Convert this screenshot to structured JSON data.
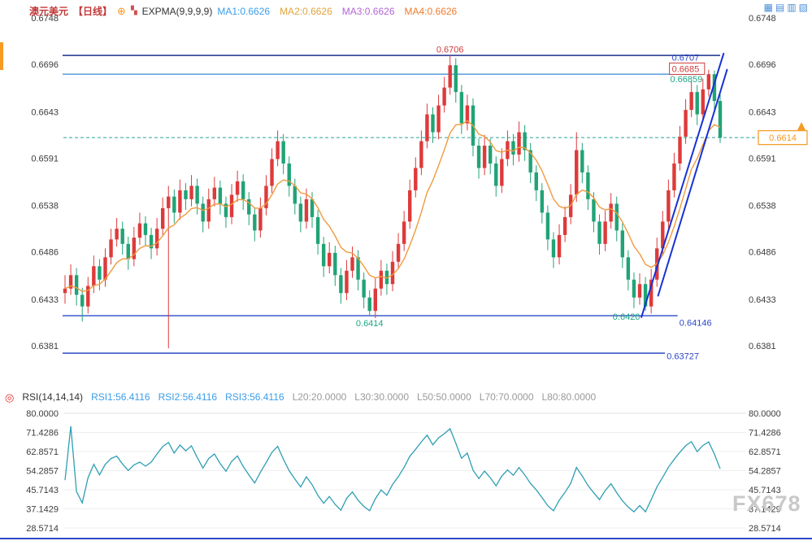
{
  "header": {
    "symbol": "澳元美元",
    "period": "【日线】",
    "indicator": "EXPMA(9,9,9,9)"
  },
  "icons": {
    "add_indicator": "⊕",
    "kline": "▚",
    "rsi_target": "◎"
  },
  "toolbar_icons": [
    {
      "name": "layout-single-icon",
      "glyph": "▦"
    },
    {
      "name": "layout-split-icon",
      "glyph": "▤"
    },
    {
      "name": "layout-columns-icon",
      "glyph": "▥"
    },
    {
      "name": "layout-grid-icon",
      "glyph": "▧"
    }
  ],
  "watermark": "FX678",
  "chart_data": [
    {
      "type": "candlestick",
      "title": "澳元美元 日线 EXPMA(9,9,9,9)",
      "y_ticks": [
        "0.6748",
        "0.6696",
        "0.6643",
        "0.6591",
        "0.6538",
        "0.6486",
        "0.6433",
        "0.6381"
      ],
      "ylim": [
        0.6381,
        0.6748
      ],
      "up_color": "#de3a3a",
      "down_color": "#21a376",
      "ema_period": 9,
      "ema_color": "#f09a3e",
      "ma_items": [
        {
          "label": "MA1:0.6626",
          "color": "#3b9de8"
        },
        {
          "label": "MA2:0.6626",
          "color": "#e2a33c"
        },
        {
          "label": "MA3:0.6626",
          "color": "#b565d8"
        },
        {
          "label": "MA4:0.6626",
          "color": "#ef7d2e"
        }
      ],
      "hlines": [
        {
          "price": 0.6706,
          "end_index": 114,
          "color": "#1b2f8c",
          "width": 1.6
        },
        {
          "price": 0.6685,
          "end_index": 110.6,
          "color": "#4a93d9",
          "width": 1.4
        },
        {
          "price": 0.64146,
          "end_index": 106.6,
          "color": "#2d49c8",
          "width": 1.4
        },
        {
          "price": 0.63727,
          "end_index": 104.4,
          "color": "#2d49c8",
          "width": 1.4
        }
      ],
      "dashed_line": {
        "price": 0.6614,
        "color": "#2aa198"
      },
      "price_marker": {
        "text": "0.6614",
        "price": 0.6614,
        "color": "#f59a23"
      },
      "trendlines": [
        {
          "from": {
            "i": 100.3,
            "p": 0.6413
          },
          "to": {
            "i": 114.6,
            "p": 0.6708
          },
          "color": "#1732d2",
          "width": 2
        },
        {
          "from": {
            "i": 103.2,
            "p": 0.6437
          },
          "to": {
            "i": 115.2,
            "p": 0.669
          },
          "color": "#1732d2",
          "width": 2
        }
      ],
      "annotations": [
        {
          "text": "0.6706",
          "i": 67,
          "p": 0.67095,
          "color": "#d03b3b",
          "anchor": "middle",
          "boxed": false
        },
        {
          "text": "0.6414",
          "i": 53,
          "p": 0.6403,
          "color": "#1ba784",
          "anchor": "middle",
          "boxed": false
        },
        {
          "text": "0.6420",
          "i": 95.3,
          "p": 0.641,
          "color": "#1ba784",
          "anchor": "start",
          "boxed": false
        },
        {
          "text": "0.64146",
          "i": 106.9,
          "p": 0.64035,
          "color": "#2d49c8",
          "anchor": "start",
          "boxed": false
        },
        {
          "text": "0.63727",
          "i": 104.7,
          "p": 0.6366,
          "color": "#2d49c8",
          "anchor": "start",
          "boxed": false
        },
        {
          "text": "0.6707",
          "i": 105.6,
          "p": 0.67,
          "color": "#2d49c8",
          "anchor": "start",
          "boxed": false
        },
        {
          "text": "0.6685",
          "i": 105.6,
          "p": 0.66875,
          "color": "#d03b3b",
          "anchor": "start",
          "boxed": true
        },
        {
          "text": "0.66859",
          "i": 105.3,
          "p": 0.6676,
          "color": "#1ba784",
          "anchor": "start",
          "boxed": false
        }
      ],
      "candles": [
        [
          0.644,
          0.646,
          0.6428,
          0.6445
        ],
        [
          0.6445,
          0.6472,
          0.6438,
          0.646
        ],
        [
          0.646,
          0.6468,
          0.6426,
          0.6438
        ],
        [
          0.6438,
          0.6446,
          0.6408,
          0.6425
        ],
        [
          0.6425,
          0.6458,
          0.6417,
          0.6448
        ],
        [
          0.6448,
          0.6482,
          0.644,
          0.647
        ],
        [
          0.647,
          0.6478,
          0.6443,
          0.6455
        ],
        [
          0.6455,
          0.649,
          0.6447,
          0.648
        ],
        [
          0.648,
          0.6512,
          0.6472,
          0.65
        ],
        [
          0.65,
          0.6524,
          0.6492,
          0.6512
        ],
        [
          0.6512,
          0.652,
          0.6483,
          0.6495
        ],
        [
          0.6495,
          0.6503,
          0.6466,
          0.6478
        ],
        [
          0.6478,
          0.6514,
          0.647,
          0.6502
        ],
        [
          0.6502,
          0.653,
          0.6494,
          0.6518
        ],
        [
          0.6518,
          0.6526,
          0.6493,
          0.6505
        ],
        [
          0.6505,
          0.6513,
          0.6478,
          0.649
        ],
        [
          0.649,
          0.6524,
          0.6482,
          0.6512
        ],
        [
          0.6512,
          0.6547,
          0.6504,
          0.6535
        ],
        [
          0.6535,
          0.656,
          0.6378,
          0.6548
        ],
        [
          0.6548,
          0.6556,
          0.6518,
          0.653
        ],
        [
          0.653,
          0.6567,
          0.6522,
          0.6555
        ],
        [
          0.6555,
          0.6563,
          0.6533,
          0.6545
        ],
        [
          0.6545,
          0.6572,
          0.6537,
          0.656
        ],
        [
          0.656,
          0.6568,
          0.6528,
          0.654
        ],
        [
          0.654,
          0.6548,
          0.6508,
          0.652
        ],
        [
          0.652,
          0.6557,
          0.6512,
          0.6545
        ],
        [
          0.6545,
          0.657,
          0.6537,
          0.6558
        ],
        [
          0.6558,
          0.6566,
          0.6528,
          0.654
        ],
        [
          0.654,
          0.6548,
          0.6513,
          0.6525
        ],
        [
          0.6525,
          0.6562,
          0.6517,
          0.655
        ],
        [
          0.655,
          0.6577,
          0.6542,
          0.6565
        ],
        [
          0.6565,
          0.6573,
          0.6533,
          0.6545
        ],
        [
          0.6545,
          0.6553,
          0.6516,
          0.6528
        ],
        [
          0.6528,
          0.6536,
          0.6498,
          0.651
        ],
        [
          0.651,
          0.6547,
          0.6502,
          0.6535
        ],
        [
          0.6535,
          0.6572,
          0.6527,
          0.656
        ],
        [
          0.656,
          0.6602,
          0.6552,
          0.659
        ],
        [
          0.659,
          0.6622,
          0.6582,
          0.661
        ],
        [
          0.661,
          0.6618,
          0.6573,
          0.6585
        ],
        [
          0.6585,
          0.6593,
          0.6548,
          0.656
        ],
        [
          0.656,
          0.6568,
          0.6528,
          0.654
        ],
        [
          0.654,
          0.6548,
          0.6508,
          0.652
        ],
        [
          0.652,
          0.6557,
          0.6512,
          0.6545
        ],
        [
          0.6545,
          0.6553,
          0.6513,
          0.6525
        ],
        [
          0.6525,
          0.6533,
          0.6483,
          0.6495
        ],
        [
          0.6495,
          0.6503,
          0.6458,
          0.647
        ],
        [
          0.647,
          0.6497,
          0.6462,
          0.6485
        ],
        [
          0.6485,
          0.6493,
          0.6448,
          0.646
        ],
        [
          0.646,
          0.6468,
          0.6428,
          0.644
        ],
        [
          0.644,
          0.6477,
          0.6432,
          0.6465
        ],
        [
          0.6465,
          0.6492,
          0.6457,
          0.648
        ],
        [
          0.648,
          0.6488,
          0.6443,
          0.6455
        ],
        [
          0.6455,
          0.6463,
          0.6423,
          0.6435
        ],
        [
          0.6435,
          0.6443,
          0.6414,
          0.642
        ],
        [
          0.642,
          0.6457,
          0.6412,
          0.6445
        ],
        [
          0.6445,
          0.6477,
          0.6437,
          0.6465
        ],
        [
          0.6465,
          0.6473,
          0.6438,
          0.645
        ],
        [
          0.645,
          0.6487,
          0.6442,
          0.6475
        ],
        [
          0.6475,
          0.6507,
          0.6467,
          0.6495
        ],
        [
          0.6495,
          0.6532,
          0.6487,
          0.652
        ],
        [
          0.652,
          0.6567,
          0.6512,
          0.6555
        ],
        [
          0.6555,
          0.6592,
          0.6547,
          0.658
        ],
        [
          0.658,
          0.6622,
          0.6572,
          0.661
        ],
        [
          0.661,
          0.6652,
          0.6602,
          0.664
        ],
        [
          0.664,
          0.6648,
          0.6608,
          0.662
        ],
        [
          0.662,
          0.6662,
          0.6612,
          0.665
        ],
        [
          0.665,
          0.6682,
          0.6642,
          0.667
        ],
        [
          0.667,
          0.6706,
          0.6662,
          0.6695
        ],
        [
          0.6695,
          0.6703,
          0.6653,
          0.6665
        ],
        [
          0.6665,
          0.6673,
          0.6618,
          0.663
        ],
        [
          0.663,
          0.6662,
          0.6622,
          0.665
        ],
        [
          0.665,
          0.6658,
          0.6593,
          0.6605
        ],
        [
          0.6605,
          0.6613,
          0.6568,
          0.658
        ],
        [
          0.658,
          0.6617,
          0.6572,
          0.6605
        ],
        [
          0.6605,
          0.6613,
          0.6573,
          0.6585
        ],
        [
          0.6585,
          0.6593,
          0.6548,
          0.656
        ],
        [
          0.656,
          0.6602,
          0.6552,
          0.659
        ],
        [
          0.659,
          0.6622,
          0.6582,
          0.661
        ],
        [
          0.661,
          0.6618,
          0.6583,
          0.6595
        ],
        [
          0.6595,
          0.6632,
          0.6587,
          0.662
        ],
        [
          0.662,
          0.6628,
          0.6588,
          0.66
        ],
        [
          0.66,
          0.6608,
          0.6563,
          0.6575
        ],
        [
          0.6575,
          0.6583,
          0.6543,
          0.6555
        ],
        [
          0.6555,
          0.6563,
          0.6518,
          0.653
        ],
        [
          0.653,
          0.6538,
          0.6488,
          0.65
        ],
        [
          0.65,
          0.6508,
          0.6468,
          0.648
        ],
        [
          0.648,
          0.6517,
          0.6472,
          0.6505
        ],
        [
          0.6505,
          0.6537,
          0.6497,
          0.6525
        ],
        [
          0.6525,
          0.6562,
          0.6517,
          0.655
        ],
        [
          0.655,
          0.662,
          0.6542,
          0.66
        ],
        [
          0.66,
          0.6608,
          0.6563,
          0.6575
        ],
        [
          0.6575,
          0.6583,
          0.6533,
          0.6545
        ],
        [
          0.6545,
          0.6553,
          0.6508,
          0.652
        ],
        [
          0.652,
          0.6528,
          0.6483,
          0.6495
        ],
        [
          0.6495,
          0.6532,
          0.6487,
          0.652
        ],
        [
          0.652,
          0.6552,
          0.6512,
          0.654
        ],
        [
          0.654,
          0.6548,
          0.6498,
          0.651
        ],
        [
          0.651,
          0.6518,
          0.6468,
          0.648
        ],
        [
          0.648,
          0.6488,
          0.6443,
          0.6455
        ],
        [
          0.6455,
          0.6463,
          0.6423,
          0.6435
        ],
        [
          0.6435,
          0.6462,
          0.6427,
          0.645
        ],
        [
          0.645,
          0.6458,
          0.642,
          0.6425
        ],
        [
          0.6425,
          0.6467,
          0.6417,
          0.6455
        ],
        [
          0.6455,
          0.6502,
          0.6447,
          0.649
        ],
        [
          0.649,
          0.6532,
          0.6482,
          0.652
        ],
        [
          0.652,
          0.6567,
          0.6512,
          0.6555
        ],
        [
          0.6555,
          0.6597,
          0.6547,
          0.6585
        ],
        [
          0.6585,
          0.6627,
          0.6577,
          0.6615
        ],
        [
          0.6615,
          0.6657,
          0.6607,
          0.6645
        ],
        [
          0.6645,
          0.6677,
          0.6637,
          0.6665
        ],
        [
          0.6665,
          0.6673,
          0.6628,
          0.664
        ],
        [
          0.664,
          0.668,
          0.6632,
          0.6668
        ],
        [
          0.6668,
          0.669,
          0.666,
          0.6685
        ],
        [
          0.6685,
          0.6689,
          0.6643,
          0.6655
        ],
        [
          0.6655,
          0.6663,
          0.6608,
          0.6614
        ]
      ]
    },
    {
      "type": "line",
      "name": "RSI(14,14,14)",
      "derivation": "RSI(14) computed from the candle closes above",
      "period": 14,
      "levels": [
        20,
        30,
        50,
        70,
        80
      ],
      "y_ticks": [
        "80.0000",
        "71.4286",
        "62.8571",
        "54.2857",
        "45.7143",
        "37.1429",
        "28.5714"
      ],
      "ylim": [
        28.5714,
        80.0
      ],
      "line_color": "#2e9fb4",
      "header_items": [
        {
          "label": "RSI(14,14,14)",
          "color": "#333333"
        },
        {
          "label": "RSI1:56.4116",
          "color": "#3b9de8"
        },
        {
          "label": "RSI2:56.4116",
          "color": "#3b9de8"
        },
        {
          "label": "RSI3:56.4116",
          "color": "#3b9de8"
        },
        {
          "label": "L20:20.0000",
          "color": "#9a9a9a"
        },
        {
          "label": "L30:30.0000",
          "color": "#9a9a9a"
        },
        {
          "label": "L50:50.0000",
          "color": "#9a9a9a"
        },
        {
          "label": "L70:70.0000",
          "color": "#9a9a9a"
        },
        {
          "label": "L80:80.0000",
          "color": "#9a9a9a"
        }
      ]
    }
  ]
}
